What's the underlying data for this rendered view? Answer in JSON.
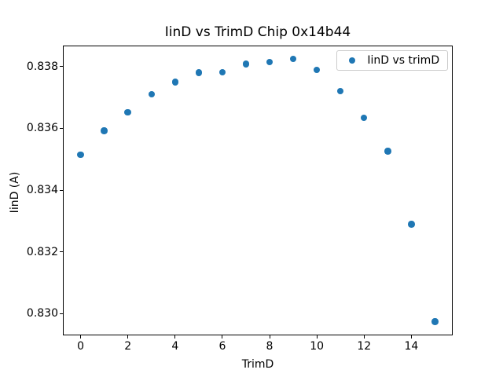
{
  "chart_data": {
    "type": "scatter",
    "title": "IinD vs TrimD Chip 0x14b44",
    "xlabel": "TrimD",
    "ylabel": "IinD (A)",
    "legend": {
      "label": "IinD vs trimD",
      "position": "upper-right"
    },
    "marker_color": "#1f77b4",
    "x": [
      0,
      1,
      2,
      3,
      4,
      5,
      6,
      7,
      8,
      9,
      10,
      11,
      12,
      13,
      14,
      15
    ],
    "y": [
      0.83515,
      0.83592,
      0.83652,
      0.83711,
      0.8375,
      0.8378,
      0.83782,
      0.83808,
      0.83814,
      0.83824,
      0.83789,
      0.83721,
      0.83634,
      0.83526,
      0.8329,
      0.82974
    ],
    "xlim": [
      -0.75,
      15.75
    ],
    "ylim": [
      0.8293,
      0.83868
    ],
    "xticks": [
      0,
      2,
      4,
      6,
      8,
      10,
      12,
      14
    ],
    "yticks": [
      0.83,
      0.832,
      0.834,
      0.836,
      0.838
    ],
    "grid": false,
    "background": "#ffffff"
  }
}
